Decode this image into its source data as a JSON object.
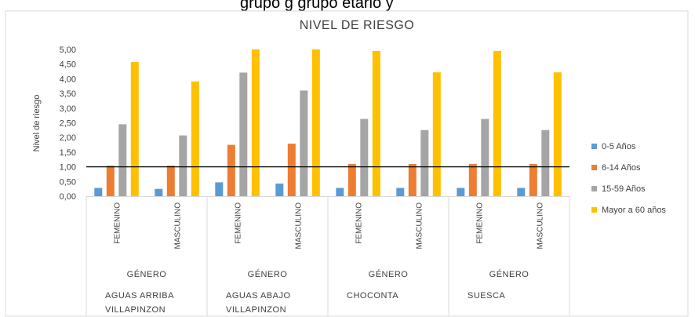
{
  "top_fragment": "grupo g  grupo etario y",
  "colors": {
    "series": [
      "#5b9bd5",
      "#ed7d31",
      "#a5a5a5",
      "#ffc000"
    ],
    "reference_line": "#000000"
  },
  "chart_data": {
    "type": "bar",
    "title": "NIVEL DE RIESGO",
    "ylabel": "Nivel de riesgo",
    "xlabel": "",
    "ylim": [
      0,
      5
    ],
    "yticks": [
      "0,00",
      "0,50",
      "1,00",
      "1,50",
      "2,00",
      "2,50",
      "3,00",
      "3,50",
      "4,00",
      "4,50",
      "5,00"
    ],
    "grid": false,
    "legend_position": "right",
    "reference_line": 1.0,
    "categories": [
      "FEMENINO",
      "MASCULINO",
      "FEMENINO",
      "MASCULINO",
      "FEMENINO",
      "MASCULINO",
      "FEMENINO",
      "MASCULINO"
    ],
    "category_groups": [
      {
        "label": "GÉNERO",
        "location": [
          "AGUAS ARRIBA",
          "VILLAPINZON"
        ]
      },
      {
        "label": "GÉNERO",
        "location": [
          "AGUAS ABAJO",
          "VILLAPINZON"
        ]
      },
      {
        "label": "GÉNERO",
        "location": [
          "CHOCONTA",
          ""
        ]
      },
      {
        "label": "GÉNERO",
        "location": [
          "SUESCA",
          ""
        ]
      }
    ],
    "series": [
      {
        "name": "0-5 Años",
        "values": [
          0.28,
          0.25,
          0.47,
          0.43,
          0.28,
          0.28,
          0.28,
          0.28
        ]
      },
      {
        "name": "6-14 Años",
        "values": [
          1.04,
          1.04,
          1.75,
          1.79,
          1.1,
          1.1,
          1.1,
          1.1
        ]
      },
      {
        "name": "15-59 Años",
        "values": [
          2.45,
          2.07,
          4.21,
          3.6,
          2.63,
          2.25,
          2.63,
          2.25
        ]
      },
      {
        "name": "Mayor a 60 años",
        "values": [
          4.57,
          3.91,
          5.0,
          5.0,
          4.95,
          4.22,
          4.95,
          4.22
        ]
      }
    ]
  }
}
